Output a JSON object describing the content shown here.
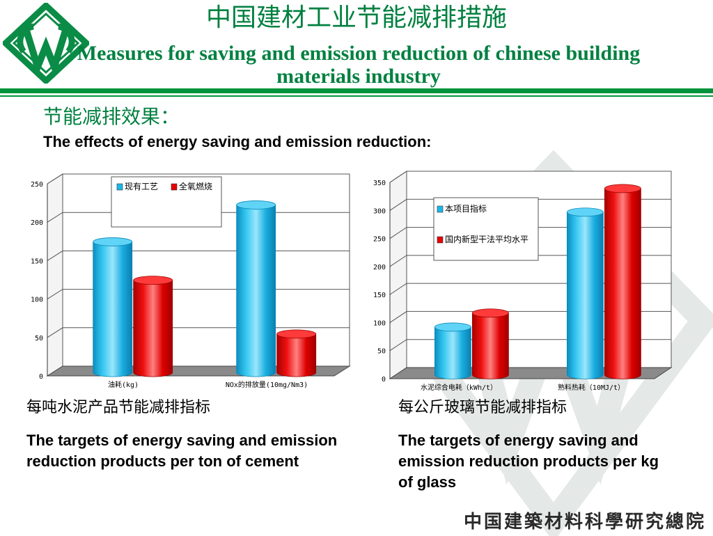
{
  "header": {
    "title_cn": "中国建材工业节能减排措施",
    "title_en": "Measures for saving and emission reduction of chinese building materials industry"
  },
  "section": {
    "heading_cn": "节能减排效果：",
    "heading_en": "The effects of energy saving and emission reduction:"
  },
  "captions": {
    "left_cn": "每吨水泥产品节能减排指标",
    "left_en": "The targets of energy saving and emission reduction products per ton of cement",
    "right_cn": "每公斤玻璃节能减排指标",
    "right_en": "The targets of energy saving and emission reduction products per kg of glass"
  },
  "footer": {
    "brand": "中国建築材料科學研究總院"
  },
  "colors": {
    "green": "#008040",
    "cyan": "#1ab8e8",
    "red": "#e60000"
  },
  "chart_data": [
    {
      "type": "bar",
      "categories": [
        "油耗(kg)",
        "NOx的排放量(10mg/Nm3)"
      ],
      "series": [
        {
          "name": "现有工艺",
          "values": [
            170,
            218
          ]
        },
        {
          "name": "全氧燃烧",
          "values": [
            120,
            50
          ]
        }
      ],
      "ylim": [
        0,
        250
      ],
      "yticks": [
        "0",
        "50",
        "100",
        "150",
        "200",
        "250"
      ],
      "legend": "top-center",
      "grid": true
    },
    {
      "type": "bar",
      "categories": [
        "水泥综合电耗（kWh/t）",
        "熟料热耗（10MJ/t）"
      ],
      "series": [
        {
          "name": "本项目指标",
          "values": [
            85,
            290
          ]
        },
        {
          "name": "国内新型干法平均水平",
          "values": [
            110,
            332
          ]
        }
      ],
      "ylim": [
        0,
        350
      ],
      "yticks": [
        "0",
        "50",
        "100",
        "150",
        "200",
        "250",
        "300",
        "350"
      ],
      "legend": "top-left",
      "grid": true
    }
  ]
}
